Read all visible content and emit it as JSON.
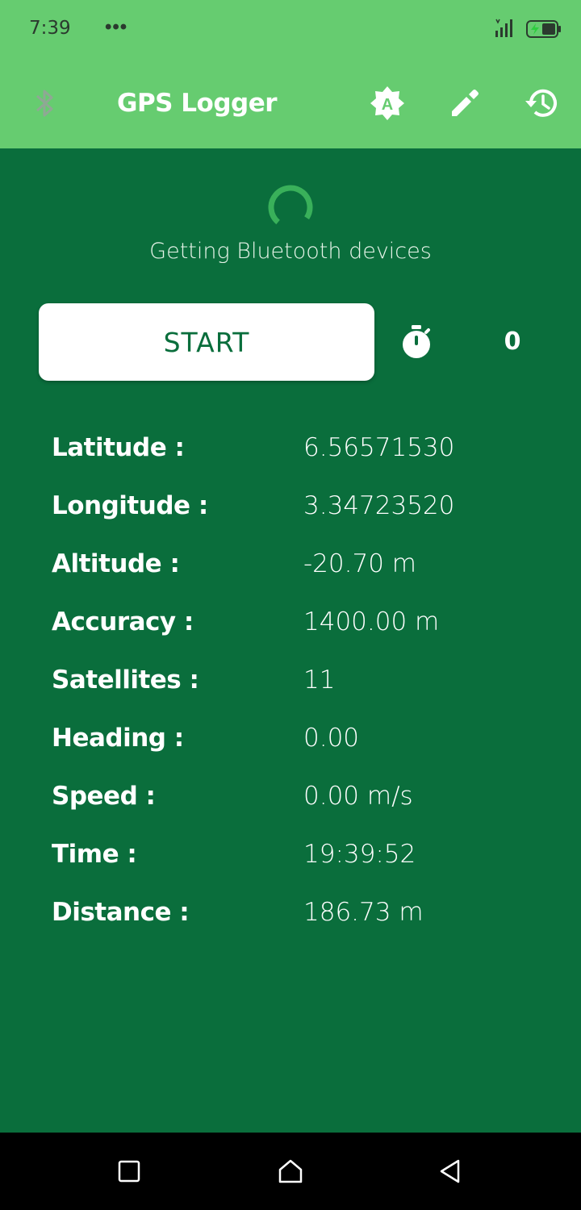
{
  "status_bar": {
    "time": "7:39",
    "more": "•••",
    "icons": [
      "signal-icon",
      "battery-charging-icon"
    ]
  },
  "app_bar": {
    "title": "GPS Logger",
    "icons": [
      "bluetooth-icon",
      "auto-brightness-icon",
      "edit-icon",
      "history-icon"
    ]
  },
  "loading": {
    "text": "Getting Bluetooth devices"
  },
  "controls": {
    "start_label": "START",
    "timer_count": "0"
  },
  "readings": [
    {
      "label": "Latitude :",
      "value": "6.56571530"
    },
    {
      "label": "Longitude :",
      "value": "3.34723520"
    },
    {
      "label": "Altitude :",
      "value": "-20.70 m"
    },
    {
      "label": "Accuracy :",
      "value": "1400.00 m"
    },
    {
      "label": "Satellites :",
      "value": "11"
    },
    {
      "label": "Heading :",
      "value": "0.00"
    },
    {
      "label": "Speed :",
      "value": "0.00 m/s"
    },
    {
      "label": "Time :",
      "value": "19:39:52"
    },
    {
      "label": "Distance :",
      "value": "186.73 m"
    }
  ],
  "nav_bar": {
    "icons": [
      "recents-icon",
      "home-icon",
      "back-icon"
    ]
  },
  "colors": {
    "primary_light": "#66cc70",
    "primary_dark": "#0a6e3c",
    "text_light": "#ffffff"
  }
}
